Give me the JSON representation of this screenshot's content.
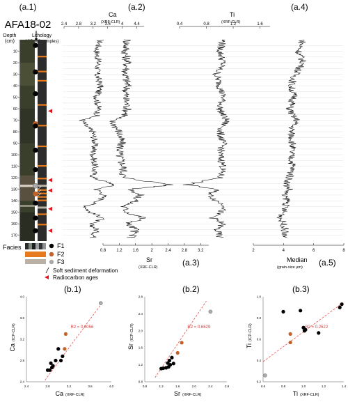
{
  "figure": {
    "panel_a1_label": "(a.1)",
    "panel_a2_label": "(a.2)",
    "panel_a3_label": "(a.3)",
    "panel_a4_label": "(a.4)",
    "panel_a5_label": "(a.5)",
    "core_name": "AFA18-02",
    "depth_label_1": "Depth",
    "depth_label_2": "(cm)",
    "lithology_label": "Lithology",
    "icpms_label": "(ICP-MS samples)",
    "facies_label": "Facies",
    "legend_f1": "F1",
    "legend_f2": "F2",
    "legend_f3": "F3",
    "legend_soft": "Soft sediment deformation",
    "legend_radio": "Radiocarbon ages",
    "colors": {
      "f1": "#000000",
      "f2": "#c0622a",
      "f3": "#aaaaaa",
      "orange_layer": "#e87a1e",
      "radiocarbon": "#e4151f",
      "fit_line": "#e45050",
      "r2_text": "#d94040",
      "core_photo": "#3a3f2c"
    }
  },
  "chart_data": [
    {
      "type": "line",
      "id": "core-logs",
      "depth_axis": {
        "label": "",
        "min": 0,
        "max": 175,
        "ticks": [
          10,
          20,
          30,
          40,
          50,
          60,
          70,
          80,
          90,
          100,
          110,
          120,
          130,
          140,
          150,
          160,
          170
        ]
      },
      "series": [
        {
          "name": "Ca",
          "subtitle": "(XRF-CLR)",
          "ticks": [
            "2.4",
            "2.8",
            "3.2",
            "3.6",
            "4",
            "4.4"
          ],
          "xlim": [
            2.4,
            4.6
          ],
          "profile": [
            [
              0,
              3.4
            ],
            [
              10,
              3.3
            ],
            [
              20,
              3.35
            ],
            [
              30,
              3.3
            ],
            [
              40,
              3.4
            ],
            [
              50,
              3.3
            ],
            [
              60,
              3.35
            ],
            [
              66,
              3.3
            ],
            [
              70,
              2.9
            ],
            [
              75,
              3.0
            ],
            [
              80,
              3.2
            ],
            [
              90,
              3.25
            ],
            [
              100,
              3.2
            ],
            [
              110,
              3.25
            ],
            [
              120,
              3.2
            ],
            [
              126,
              3.8
            ],
            [
              130,
              3.3
            ],
            [
              135,
              3.5
            ],
            [
              140,
              3.4
            ],
            [
              145,
              3.0
            ],
            [
              150,
              3.1
            ],
            [
              155,
              3.5
            ],
            [
              160,
              3.1
            ],
            [
              165,
              3.3
            ],
            [
              172,
              3.2
            ]
          ]
        },
        {
          "name": "Sr",
          "subtitle": "(XRF-CLR)",
          "ticks": [
            "0.8",
            "1.2",
            "1.6",
            "2",
            "2.4",
            "2.8",
            "3.2"
          ],
          "xlim": [
            0.8,
            3.4
          ],
          "profile": [
            [
              0,
              1.4
            ],
            [
              10,
              1.35
            ],
            [
              20,
              1.4
            ],
            [
              30,
              1.35
            ],
            [
              40,
              1.4
            ],
            [
              50,
              1.35
            ],
            [
              60,
              1.4
            ],
            [
              66,
              1.35
            ],
            [
              70,
              1.0
            ],
            [
              75,
              1.1
            ],
            [
              80,
              1.2
            ],
            [
              90,
              1.25
            ],
            [
              100,
              1.2
            ],
            [
              110,
              1.3
            ],
            [
              120,
              1.3
            ],
            [
              126,
              2.5
            ],
            [
              130,
              1.5
            ],
            [
              135,
              1.7
            ],
            [
              140,
              1.6
            ],
            [
              145,
              1.3
            ],
            [
              150,
              1.4
            ],
            [
              155,
              1.8
            ],
            [
              160,
              1.4
            ],
            [
              165,
              1.6
            ],
            [
              172,
              1.5
            ]
          ]
        },
        {
          "name": "Ti",
          "subtitle": "(XRF-CLR)",
          "ticks": [
            "0.4",
            "0.8",
            "1.2",
            "1.6"
          ],
          "xlim": [
            0.4,
            1.75
          ],
          "profile": [
            [
              0,
              1.05
            ],
            [
              10,
              1.0
            ],
            [
              20,
              1.05
            ],
            [
              30,
              0.95
            ],
            [
              40,
              1.0
            ],
            [
              50,
              1.05
            ],
            [
              60,
              1.0
            ],
            [
              66,
              1.05
            ],
            [
              70,
              1.1
            ],
            [
              75,
              1.05
            ],
            [
              80,
              1.0
            ],
            [
              90,
              1.05
            ],
            [
              100,
              1.0
            ],
            [
              110,
              1.05
            ],
            [
              120,
              1.0
            ],
            [
              126,
              0.5
            ],
            [
              130,
              0.95
            ],
            [
              135,
              0.85
            ],
            [
              140,
              0.95
            ],
            [
              145,
              1.1
            ],
            [
              150,
              1.0
            ],
            [
              155,
              0.9
            ],
            [
              160,
              1.05
            ],
            [
              165,
              0.95
            ],
            [
              172,
              1.0
            ]
          ]
        },
        {
          "name": "Median",
          "subtitle": "(grain-size µm)",
          "ticks": [
            "2",
            "4",
            "6",
            "8"
          ],
          "xlim": [
            2,
            8
          ],
          "profile": [
            [
              0,
              5.3
            ],
            [
              10,
              5.0
            ],
            [
              20,
              5.3
            ],
            [
              30,
              4.8
            ],
            [
              40,
              4.5
            ],
            [
              50,
              4.7
            ],
            [
              60,
              4.4
            ],
            [
              66,
              4.6
            ],
            [
              70,
              4.9
            ],
            [
              75,
              4.6
            ],
            [
              80,
              4.5
            ],
            [
              90,
              4.6
            ],
            [
              100,
              4.5
            ],
            [
              110,
              4.6
            ],
            [
              120,
              4.4
            ],
            [
              126,
              4.2
            ],
            [
              130,
              4.4
            ],
            [
              135,
              4.0
            ],
            [
              140,
              4.3
            ],
            [
              145,
              4.1
            ],
            [
              150,
              4.0
            ],
            [
              155,
              3.8
            ],
            [
              160,
              4.0
            ],
            [
              165,
              4.1
            ],
            [
              172,
              4.0
            ]
          ]
        }
      ],
      "icpms_samples": [
        {
          "depth": 5,
          "facies": "F1"
        },
        {
          "depth": 28,
          "facies": "F1"
        },
        {
          "depth": 47,
          "facies": "F1"
        },
        {
          "depth": 73,
          "facies": "F2"
        },
        {
          "depth": 75,
          "facies": "F1"
        },
        {
          "depth": 96,
          "facies": "F1"
        },
        {
          "depth": 113,
          "facies": "F1"
        },
        {
          "depth": 127,
          "facies": "F3"
        },
        {
          "depth": 134,
          "facies": "F2"
        },
        {
          "depth": 142,
          "facies": "F1"
        },
        {
          "depth": 155,
          "facies": "F1"
        },
        {
          "depth": 166,
          "facies": "F1"
        }
      ],
      "radiocarbon_depths": [
        62,
        122,
        131,
        147,
        166
      ],
      "orange_layers": [
        14,
        27,
        35,
        56,
        74,
        92,
        109,
        120,
        130,
        133,
        136,
        139,
        151,
        160
      ]
    },
    {
      "type": "scatter",
      "id": "b1",
      "title": "(b.1)",
      "xlabel": "Ca",
      "xlabel_sub": "(XRF-CLR)",
      "ylabel": "Ca",
      "ylabel_sub": "(ICP-CLR)",
      "xlim": [
        2.4,
        4.0
      ],
      "ylim": [
        2.4,
        4.0
      ],
      "xticks": [
        "2.4",
        "2.8",
        "3.2",
        "3.6",
        "4.0"
      ],
      "yticks": [
        "2.4",
        "2.8",
        "3.2",
        "3.6",
        "4.0"
      ],
      "r2_text": "R2 = 0.8056",
      "fit": [
        [
          2.75,
          2.43
        ],
        [
          3.8,
          3.85
        ]
      ],
      "points": [
        {
          "x": 2.8,
          "y": 2.62,
          "facies": "F1"
        },
        {
          "x": 2.84,
          "y": 2.62,
          "facies": "F1"
        },
        {
          "x": 2.88,
          "y": 2.67,
          "facies": "F1"
        },
        {
          "x": 2.9,
          "y": 2.7,
          "facies": "F1"
        },
        {
          "x": 2.86,
          "y": 2.75,
          "facies": "F1"
        },
        {
          "x": 2.95,
          "y": 2.8,
          "facies": "F1"
        },
        {
          "x": 3.05,
          "y": 2.8,
          "facies": "F1"
        },
        {
          "x": 3.08,
          "y": 2.88,
          "facies": "F1"
        },
        {
          "x": 3.0,
          "y": 3.02,
          "facies": "F1"
        },
        {
          "x": 3.12,
          "y": 3.02,
          "facies": "F2"
        },
        {
          "x": 3.14,
          "y": 3.3,
          "facies": "F2"
        },
        {
          "x": 3.8,
          "y": 3.88,
          "facies": "F3"
        }
      ]
    },
    {
      "type": "scatter",
      "id": "b2",
      "title": "(b.2)",
      "xlabel": "Sr",
      "xlabel_sub": "(XRF-CLR)",
      "ylabel": "Sr",
      "ylabel_sub": "(ICP-CLR)",
      "xlim": [
        0.8,
        2.8
      ],
      "ylim": [
        0.8,
        2.8
      ],
      "xticks": [
        "0.8",
        "1.2",
        "1.6",
        "2.0",
        "2.4",
        "2.8"
      ],
      "yticks": [
        "0.8",
        "1.2",
        "1.6",
        "2.0",
        "2.4",
        "2.8"
      ],
      "r2_text": "R2 = 0.6629",
      "fit": [
        [
          1.05,
          0.9
        ],
        [
          2.3,
          2.7
        ]
      ],
      "points": [
        {
          "x": 1.2,
          "y": 1.11,
          "facies": "F1"
        },
        {
          "x": 1.25,
          "y": 1.12,
          "facies": "F1"
        },
        {
          "x": 1.32,
          "y": 1.13,
          "facies": "F1"
        },
        {
          "x": 1.38,
          "y": 1.15,
          "facies": "F1"
        },
        {
          "x": 1.42,
          "y": 1.2,
          "facies": "F1"
        },
        {
          "x": 1.36,
          "y": 1.24,
          "facies": "F1"
        },
        {
          "x": 1.4,
          "y": 1.3,
          "facies": "F1"
        },
        {
          "x": 1.5,
          "y": 1.23,
          "facies": "F1"
        },
        {
          "x": 1.46,
          "y": 1.37,
          "facies": "F1"
        },
        {
          "x": 1.6,
          "y": 1.48,
          "facies": "F2"
        },
        {
          "x": 1.7,
          "y": 1.72,
          "facies": "F2"
        },
        {
          "x": 2.4,
          "y": 2.45,
          "facies": "F3"
        }
      ]
    },
    {
      "type": "scatter",
      "id": "b3",
      "title": "(b.3)",
      "xlabel": "Ti",
      "xlabel_sub": "(XRF-CLR)",
      "ylabel": "Ti",
      "ylabel_sub": "(ICP-CLR)",
      "xlim": [
        0.6,
        1.4
      ],
      "ylim": [
        0.2,
        1.0
      ],
      "xticks": [
        "0.6",
        "0.8",
        "1.0",
        "1.2",
        "1.4"
      ],
      "yticks": [
        "0.2",
        "0.4",
        "0.6",
        "0.8",
        "1.0"
      ],
      "r2_text": "R2 = 0.2522",
      "fit": [
        [
          0.6,
          0.39
        ],
        [
          1.4,
          0.95
        ]
      ],
      "points": [
        {
          "x": 0.8,
          "y": 0.86,
          "facies": "F1"
        },
        {
          "x": 0.97,
          "y": 0.87,
          "facies": "F1"
        },
        {
          "x": 1.0,
          "y": 0.71,
          "facies": "F1"
        },
        {
          "x": 1.01,
          "y": 0.68,
          "facies": "F1"
        },
        {
          "x": 1.02,
          "y": 0.69,
          "facies": "F1"
        },
        {
          "x": 1.15,
          "y": 0.66,
          "facies": "F1"
        },
        {
          "x": 1.36,
          "y": 0.9,
          "facies": "F1"
        },
        {
          "x": 1.38,
          "y": 0.93,
          "facies": "F1"
        },
        {
          "x": 0.87,
          "y": 0.65,
          "facies": "F2"
        },
        {
          "x": 0.87,
          "y": 0.57,
          "facies": "F2"
        },
        {
          "x": 0.62,
          "y": 0.26,
          "facies": "F3"
        }
      ]
    }
  ]
}
